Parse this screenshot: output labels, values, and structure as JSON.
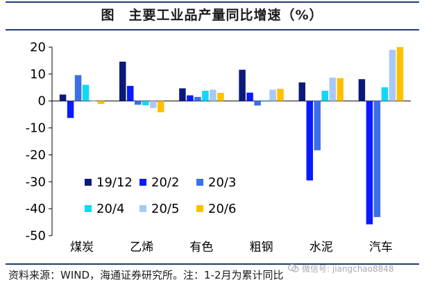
{
  "chart_data": {
    "type": "bar",
    "title": "图　主要工业品产量同比增速（%）",
    "categories": [
      "煤炭",
      "乙烯",
      "有色",
      "粗钢",
      "水泥",
      "汽车"
    ],
    "series": [
      {
        "name": "19/12",
        "color": "#0b1a7a",
        "values": [
          2.4,
          14.6,
          4.7,
          11.6,
          6.9,
          8.1
        ]
      },
      {
        "name": "20/2",
        "color": "#0a1aff",
        "values": [
          -6.3,
          5.6,
          2.1,
          3.1,
          -29.5,
          -45.8
        ]
      },
      {
        "name": "20/3",
        "color": "#3a6fe6",
        "values": [
          9.6,
          -1.4,
          1.5,
          -1.7,
          -18.3,
          -43.1
        ]
      },
      {
        "name": "20/4",
        "color": "#14d6f5",
        "values": [
          6.0,
          -1.6,
          3.8,
          0.2,
          3.8,
          5.1
        ]
      },
      {
        "name": "20/5",
        "color": "#a9c9f5",
        "values": [
          -0.2,
          -2.6,
          4.2,
          4.2,
          8.7,
          19.0
        ]
      },
      {
        "name": "20/6",
        "color": "#ffc000",
        "values": [
          -1.1,
          -4.2,
          3.0,
          4.5,
          8.5,
          20.0
        ]
      }
    ],
    "ylim": [
      -50,
      20
    ],
    "yticks": [
      20,
      10,
      0,
      -10,
      -20,
      -30,
      -40,
      -50
    ],
    "xlabel": "",
    "ylabel": "",
    "grid": false,
    "legend_placement": "bottom-left"
  },
  "source_note": "资料来源：WIND，海通证券研究所。注：1-2月为累计同比",
  "watermark": "微信号: jiangchao8848"
}
